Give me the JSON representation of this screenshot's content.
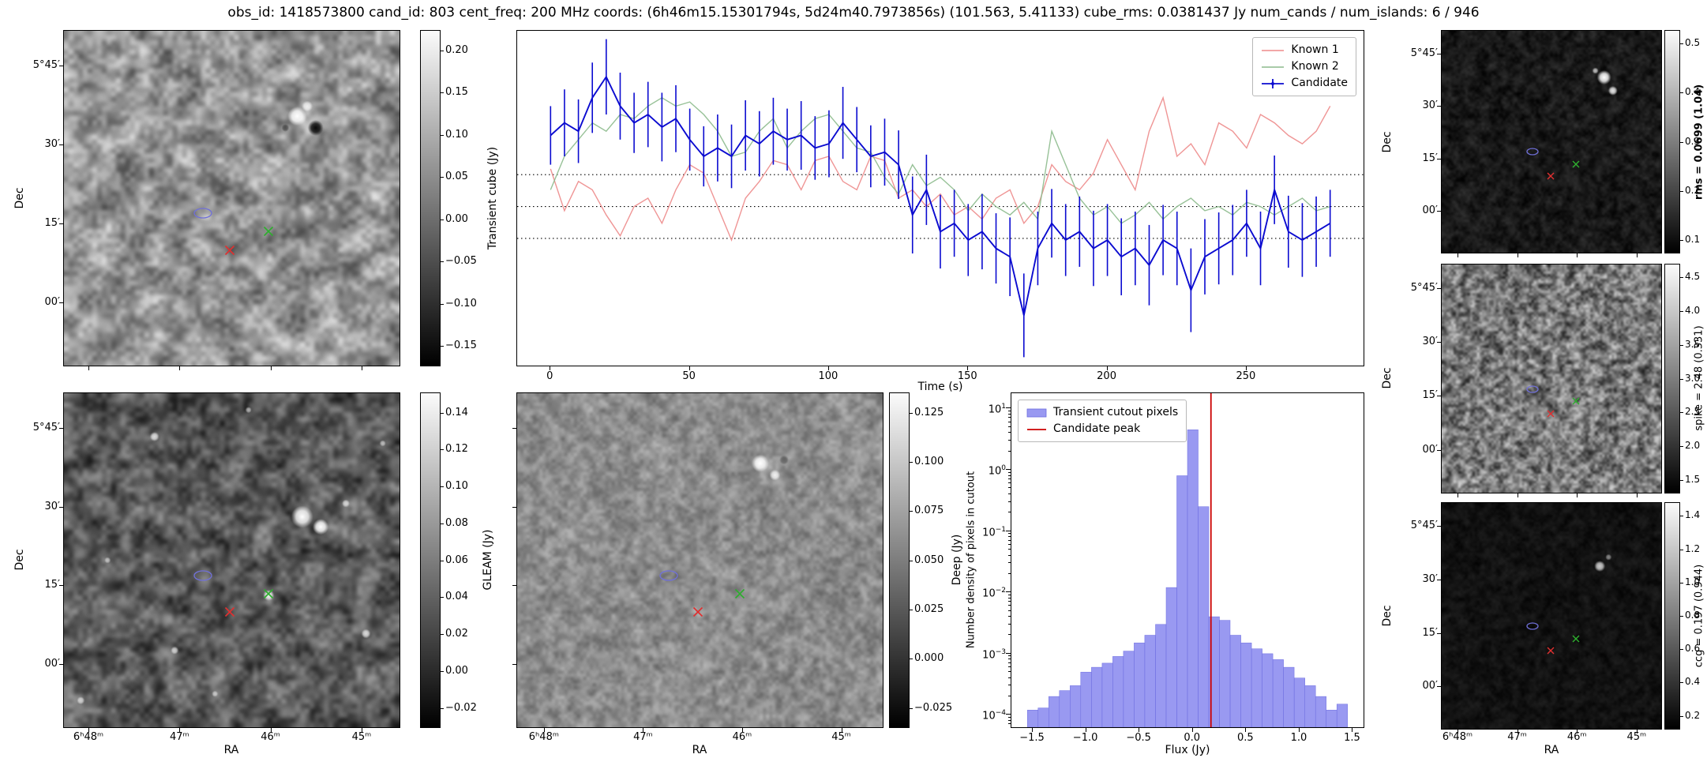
{
  "title": "obs_id: 1418573800 cand_id: 803 cent_freq: 200 MHz coords: (6h46m15.15301794s, 5d24m40.7973856s) (101.563, 5.41133) cube_rms: 0.0381437 Jy num_cands / num_islands: 6 / 946",
  "palette": {
    "known1": "#ed8a8a",
    "known2": "#8cba8c",
    "candidate": "#0b0bd0",
    "hist_fill": "#8787ee",
    "hist_edge": "#6d6de0",
    "peak_line": "#cc0000",
    "marker_red": "#e03030",
    "marker_green": "#2fae2f",
    "contour_blue": "#7070d8"
  },
  "axes": {
    "ra_label": "RA",
    "dec_label": "Dec",
    "ra_ticks": [
      "6ʰ48ᵐ",
      "47ᵐ",
      "46ᵐ",
      "45ᵐ"
    ],
    "dec_ticks": [
      "5°45′",
      "30′",
      "15′",
      "00′"
    ]
  },
  "colorbars": {
    "transient": {
      "label": "Transient cube (Jy)",
      "ticks": [
        "0.20",
        "0.15",
        "0.10",
        "0.05",
        "0.00",
        "−0.05",
        "−0.10",
        "−0.15"
      ]
    },
    "gleam": {
      "label": "GLEAM (Jy)",
      "ticks": [
        "0.14",
        "0.12",
        "0.10",
        "0.08",
        "0.06",
        "0.04",
        "0.02",
        "0.00",
        "−0.02"
      ]
    },
    "deep": {
      "label": "Deep (Jy)",
      "ticks": [
        "0.125",
        "0.100",
        "0.075",
        "0.050",
        "0.025",
        "0.000",
        "−0.025"
      ]
    },
    "rms": {
      "label": "rms = 0.0699 (1.04)",
      "ticks": [
        "0.5",
        "0.4",
        "0.3",
        "0.2",
        "0.1"
      ]
    },
    "spike": {
      "label": "spike = 2.48 (0.331)",
      "ticks": [
        "4.5",
        "4.0",
        "3.5",
        "3.0",
        "2.5",
        "2.0",
        "1.5"
      ]
    },
    "ccg": {
      "label": "ccg = 0.197 (0.944)",
      "ticks": [
        "1.4",
        "1.2",
        "1.0",
        "0.8",
        "0.6",
        "0.4",
        "0.2"
      ]
    }
  },
  "markers": {
    "contour": {
      "x": 0.415,
      "y": 0.545
    },
    "red_x": {
      "x": 0.495,
      "y": 0.655
    },
    "green_x": {
      "x": 0.61,
      "y": 0.6
    }
  },
  "chart_data": [
    {
      "type": "line",
      "id": "lightcurve",
      "xlabel": "Time (s)",
      "ylabel": "",
      "xlim": [
        -12,
        292
      ],
      "ylim": [
        -0.19,
        0.21
      ],
      "xticks": [
        0,
        50,
        100,
        150,
        200,
        250
      ],
      "hlines": [
        0.0381,
        0.0,
        -0.0381
      ],
      "legend_position": "upper right",
      "x": [
        0,
        5,
        10,
        15,
        20,
        25,
        30,
        35,
        40,
        45,
        50,
        55,
        60,
        65,
        70,
        75,
        80,
        85,
        90,
        95,
        100,
        105,
        110,
        115,
        120,
        125,
        130,
        135,
        140,
        145,
        150,
        155,
        160,
        165,
        170,
        175,
        180,
        185,
        190,
        195,
        200,
        205,
        210,
        215,
        220,
        225,
        230,
        235,
        240,
        245,
        250,
        255,
        260,
        265,
        270,
        275,
        280
      ],
      "series": [
        {
          "name": "Known 1",
          "color": "known1",
          "errorbars": false,
          "values": [
            0.045,
            -0.005,
            0.03,
            0.02,
            -0.01,
            -0.035,
            0.0,
            0.01,
            -0.02,
            0.02,
            0.05,
            0.04,
            0.0,
            -0.04,
            0.01,
            0.03,
            0.055,
            0.05,
            0.02,
            0.055,
            0.06,
            0.03,
            0.02,
            0.06,
            0.055,
            0.01,
            0.02,
            0.0,
            0.015,
            -0.01,
            0.0,
            -0.015,
            0.01,
            0.02,
            -0.02,
            0.0,
            0.05,
            0.03,
            0.02,
            0.04,
            0.08,
            0.05,
            0.02,
            0.09,
            0.13,
            0.06,
            0.075,
            0.05,
            0.1,
            0.09,
            0.07,
            0.11,
            0.1,
            0.085,
            0.075,
            0.09,
            0.12
          ]
        },
        {
          "name": "Known 2",
          "color": "known2",
          "errorbars": false,
          "values": [
            0.02,
            0.06,
            0.08,
            0.1,
            0.09,
            0.11,
            0.105,
            0.12,
            0.13,
            0.12,
            0.125,
            0.11,
            0.09,
            0.06,
            0.065,
            0.09,
            0.105,
            0.07,
            0.09,
            0.105,
            0.11,
            0.09,
            0.07,
            0.065,
            0.035,
            0.015,
            0.05,
            0.025,
            0.035,
            0.02,
            -0.005,
            0.015,
            0.0,
            -0.01,
            0.005,
            -0.015,
            0.09,
            0.05,
            0.01,
            -0.01,
            0.0,
            -0.02,
            -0.01,
            0.005,
            -0.015,
            0.0,
            0.01,
            -0.005,
            0.0,
            -0.01,
            0.005,
            0.0,
            -0.01,
            0.0,
            0.01,
            -0.005,
            0.0
          ]
        },
        {
          "name": "Candidate",
          "color": "candidate",
          "errorbars": true,
          "values": [
            0.085,
            0.1,
            0.09,
            0.13,
            0.155,
            0.12,
            0.1,
            0.11,
            0.095,
            0.105,
            0.08,
            0.06,
            0.07,
            0.06,
            0.085,
            0.075,
            0.09,
            0.08,
            0.085,
            0.07,
            0.075,
            0.1,
            0.08,
            0.06,
            0.065,
            0.05,
            -0.01,
            0.02,
            -0.03,
            -0.02,
            -0.04,
            -0.03,
            -0.05,
            -0.06,
            -0.13,
            -0.05,
            -0.02,
            -0.04,
            -0.03,
            -0.05,
            -0.04,
            -0.06,
            -0.05,
            -0.07,
            -0.04,
            -0.05,
            -0.1,
            -0.06,
            -0.05,
            -0.04,
            -0.02,
            -0.05,
            0.02,
            -0.03,
            -0.04,
            -0.03,
            -0.02
          ],
          "errors": [
            0.035,
            0.04,
            0.038,
            0.042,
            0.045,
            0.04,
            0.036,
            0.039,
            0.041,
            0.04,
            0.037,
            0.036,
            0.04,
            0.038,
            0.042,
            0.039,
            0.04,
            0.037,
            0.041,
            0.038,
            0.04,
            0.043,
            0.039,
            0.037,
            0.04,
            0.041,
            0.046,
            0.042,
            0.044,
            0.04,
            0.043,
            0.045,
            0.042,
            0.047,
            0.05,
            0.044,
            0.041,
            0.043,
            0.042,
            0.045,
            0.043,
            0.046,
            0.044,
            0.048,
            0.042,
            0.044,
            0.05,
            0.045,
            0.043,
            0.042,
            0.04,
            0.044,
            0.041,
            0.043,
            0.044,
            0.042,
            0.04
          ]
        }
      ]
    },
    {
      "type": "bar",
      "id": "histogram",
      "xlabel": "Flux (Jy)",
      "ylabel": "Number density of pixels in cutout",
      "xlim": [
        -1.7,
        1.6
      ],
      "ylog": true,
      "ylim_exp": [
        -4.2,
        1.25
      ],
      "xticks": [
        -1.5,
        -1.0,
        -0.5,
        0.0,
        0.5,
        1.0,
        1.5
      ],
      "ytick_labels": [
        "10^1",
        "10^0",
        "10^−1",
        "10^−2",
        "10^−3",
        "10^−4"
      ],
      "ytick_exponents": [
        1,
        0,
        -1,
        -2,
        -3,
        -4
      ],
      "bin_width": 0.1,
      "bin_centers": [
        -1.5,
        -1.4,
        -1.3,
        -1.2,
        -1.1,
        -1.0,
        -0.9,
        -0.8,
        -0.7,
        -0.6,
        -0.5,
        -0.4,
        -0.3,
        -0.2,
        -0.1,
        0.0,
        0.1,
        0.2,
        0.3,
        0.4,
        0.5,
        0.6,
        0.7,
        0.8,
        0.9,
        1.0,
        1.1,
        1.2,
        1.3,
        1.4
      ],
      "values": [
        0.00012,
        0.00013,
        0.0002,
        0.00025,
        0.0003,
        0.0005,
        0.0006,
        0.0007,
        0.0009,
        0.0011,
        0.0015,
        0.002,
        0.003,
        0.012,
        0.8,
        4.5,
        0.25,
        0.004,
        0.0035,
        0.002,
        0.0015,
        0.0012,
        0.001,
        0.0008,
        0.0006,
        0.0004,
        0.0003,
        0.0002,
        0.00012,
        0.00015
      ],
      "candidate_peak": 0.17,
      "legend": [
        {
          "label": "Transient cutout pixels",
          "type": "patch",
          "color": "hist_fill"
        },
        {
          "label": "Candidate peak",
          "type": "line",
          "color": "peak_line"
        }
      ]
    }
  ]
}
